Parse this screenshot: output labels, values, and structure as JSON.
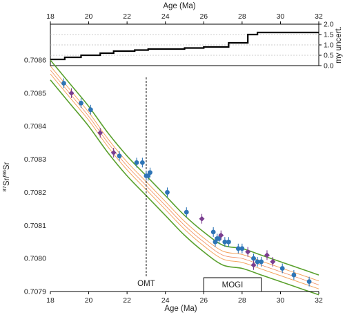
{
  "chart_data": [
    {
      "id": "uncertainty",
      "type": "line",
      "xlabel": "Age (Ma)",
      "ylabel": "my uncert.",
      "xlim": [
        18,
        32
      ],
      "ylim": [
        0,
        2
      ],
      "xticks": [
        18,
        20,
        22,
        24,
        26,
        28,
        30,
        32
      ],
      "yticks": [
        "0.0",
        "0.5",
        "1.0",
        "1.5",
        "2.0"
      ],
      "grid": "horizontal-dashed",
      "step_x": [
        18,
        18.75,
        19.6,
        20.6,
        21.3,
        22.4,
        23.1,
        24.0,
        25.0,
        26.0,
        27.3,
        28.3,
        28.8,
        32
      ],
      "step_y": [
        0.3,
        0.4,
        0.5,
        0.6,
        0.7,
        0.75,
        0.8,
        0.8,
        0.85,
        0.9,
        1.1,
        1.5,
        1.6,
        1.6
      ]
    },
    {
      "id": "strontium",
      "type": "scatter",
      "xlabel": "Age (Ma)",
      "ylabel_parts": [
        "87",
        "Sr/",
        "86",
        "Sr"
      ],
      "xlim": [
        18,
        32
      ],
      "ylim": [
        0.7079,
        0.7086
      ],
      "xticks": [
        18,
        20,
        22,
        24,
        26,
        28,
        30,
        32
      ],
      "yticks": [
        "0.7079",
        "0.7080",
        "0.7081",
        "0.7082",
        "0.7083",
        "0.7084",
        "0.7085",
        "0.7086"
      ],
      "curve_x": [
        18,
        19,
        20,
        21,
        22,
        23,
        24,
        25,
        26,
        27,
        28,
        29,
        30,
        31,
        32
      ],
      "curve_mean": [
        0.70857,
        0.7085,
        0.70843,
        0.70835,
        0.70828,
        0.70822,
        0.70816,
        0.7081,
        0.70805,
        0.70801,
        0.708,
        0.70798,
        0.70796,
        0.70794,
        0.70792
      ],
      "band_outer": 3e-05,
      "band_inner": 1.2e-05,
      "series": [
        {
          "marker": "circle",
          "color": "#2e75b6",
          "x": [
            18.7,
            19.6,
            20.1,
            21.6,
            22.5,
            22.8,
            23.0,
            23.1,
            23.2,
            24.1,
            25.1,
            26.5,
            26.6,
            26.7,
            26.8,
            27.1,
            27.3,
            27.8,
            28.0,
            28.6,
            28.8,
            29.0,
            30.1,
            30.7,
            31.5
          ],
          "y": [
            0.70853,
            0.70847,
            0.70845,
            0.70831,
            0.70829,
            0.70829,
            0.70825,
            0.70825,
            0.70826,
            0.7082,
            0.70814,
            0.70808,
            0.70805,
            0.70806,
            0.70806,
            0.70805,
            0.70805,
            0.70803,
            0.70803,
            0.708,
            0.70799,
            0.70799,
            0.70797,
            0.70795,
            0.70793
          ]
        },
        {
          "marker": "diamond",
          "color": "#7a3d8f",
          "x": [
            19.1,
            20.6,
            21.3,
            25.9,
            26.9,
            28.3,
            28.6,
            29.3,
            29.6
          ],
          "y": [
            0.7085,
            0.70838,
            0.70832,
            0.70812,
            0.70807,
            0.70802,
            0.70798,
            0.70801,
            0.70799
          ]
        }
      ],
      "annotations": {
        "omt_label": "OMT",
        "omt_x": 23.0,
        "mogi_label": "MOGI",
        "mogi_range": [
          26,
          29
        ]
      }
    }
  ]
}
